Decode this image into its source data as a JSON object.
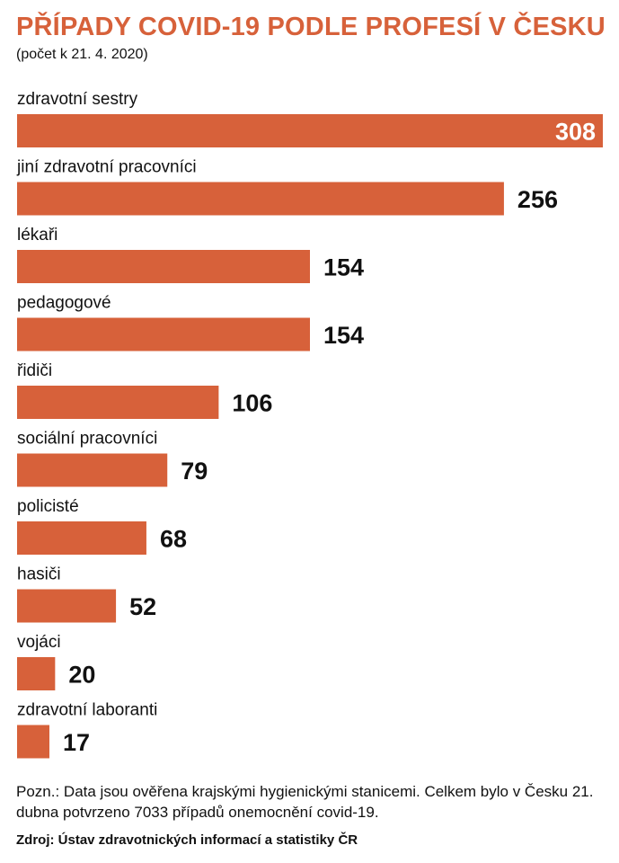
{
  "title": "PŘÍPADY COVID-19 PODLE PROFESÍ V ČESKU",
  "subtitle": "(počet k 21. 4. 2020)",
  "note": "Pozn.: Data jsou ověřena krajskými hygienickými stanicemi. Celkem bylo v Česku 21. dubna potvrzeno 7033 případů onemocnění covid-19.",
  "source": "Zdroj: Ústav zdravotnických informací a statistiky ČR",
  "colors": {
    "bar": "#d7613a",
    "title": "#d7613a"
  },
  "chart_data": {
    "type": "bar",
    "orientation": "horizontal",
    "title": "PŘÍPADY COVID-19 PODLE PROFESÍ V ČESKU",
    "subtitle": "(počet k 21. 4. 2020)",
    "categories": [
      "zdravotní sestry",
      "jiní zdravotní pracovníci",
      "lékaři",
      "pedagogové",
      "řidiči",
      "sociální pracovníci",
      "policisté",
      "hasiči",
      "vojáci",
      "zdravotní laboranti"
    ],
    "values": [
      308,
      256,
      154,
      154,
      106,
      79,
      68,
      52,
      20,
      17
    ],
    "xlim": [
      0,
      308
    ],
    "grid": false
  }
}
